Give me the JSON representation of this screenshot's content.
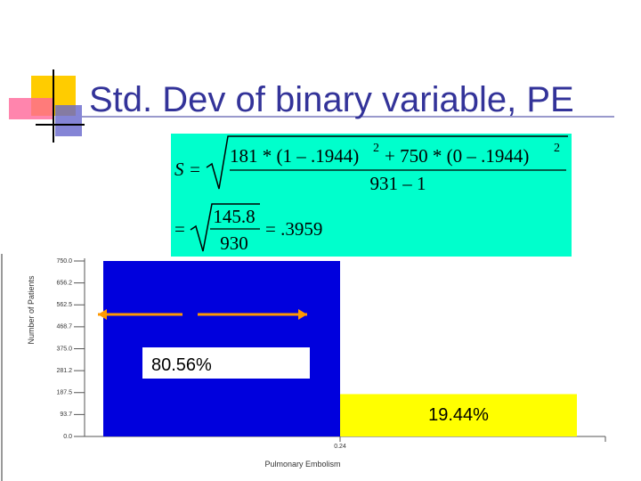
{
  "title": "Std. Dev of binary variable, PE",
  "formula": {
    "lhs": "S =",
    "num_a": "181 * (1 – .1944)",
    "exp_a": "2",
    "num_b": "+ 750 * (0 – .1944)",
    "exp_b": "2",
    "den": "931 – 1",
    "eq2": "=",
    "num2": "145.8",
    "den2": "930",
    "result": "= .3959"
  },
  "chart_data": {
    "type": "bar",
    "categories": [
      null,
      null
    ],
    "series": [
      {
        "name": null,
        "colors": [
          "#0000dd",
          "#ffff00"
        ],
        "values": [
          750,
          181
        ]
      }
    ],
    "annotations": [
      "80.56%",
      "19.44%"
    ],
    "x_tick_label": "0.24",
    "x_label": "Pulmonary Embolism",
    "y_label": "Number of Patients",
    "ylim": [
      0,
      750
    ],
    "yticks": [
      {
        "value": 0,
        "label": "0.0"
      },
      {
        "value": 93.75,
        "label": "93.7"
      },
      {
        "value": 187.5,
        "label": "187.5"
      },
      {
        "value": 281.25,
        "label": "281.2"
      },
      {
        "value": 375,
        "label": "375.0"
      },
      {
        "value": 468.75,
        "label": "468.7"
      },
      {
        "value": 562.5,
        "label": "562.5"
      },
      {
        "value": 656.25,
        "label": "656.2"
      },
      {
        "value": 750,
        "label": "750.0"
      }
    ]
  }
}
